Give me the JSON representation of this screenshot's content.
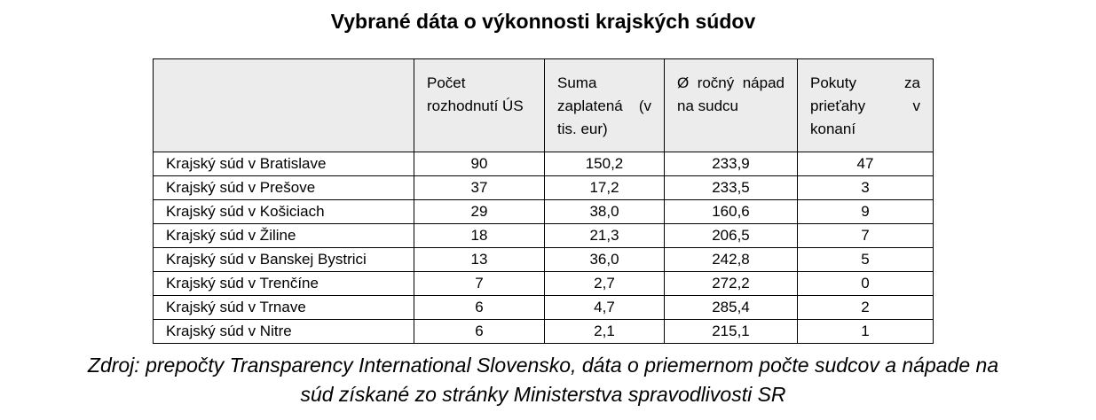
{
  "title": "Vybrané dáta o výkonnosti krajských súdov",
  "table": {
    "headers": [
      "",
      "Počet rozhodnutí ÚS",
      "Suma zaplatená (v tis. eur)",
      "Ø ročný nápad na sudcu",
      "Pokuty za prieťahy v konaní"
    ],
    "rows": [
      [
        "Krajský súd v Bratislave",
        "90",
        "150,2",
        "233,9",
        "47"
      ],
      [
        "Krajský súd v Prešove",
        "37",
        "17,2",
        "233,5",
        "3"
      ],
      [
        "Krajský súd v Košiciach",
        "29",
        "38,0",
        "160,6",
        "9"
      ],
      [
        "Krajský súd v Žiline",
        "18",
        "21,3",
        "206,5",
        "7"
      ],
      [
        "Krajský súd v Banskej Bystrici",
        "13",
        "36,0",
        "242,8",
        "5"
      ],
      [
        "Krajský súd v Trenčíne",
        "7",
        "2,7",
        "272,2",
        "0"
      ],
      [
        "Krajský súd v Trnave",
        "6",
        "4,7",
        "285,4",
        "2"
      ],
      [
        "Krajský súd v Nitre",
        "6",
        "2,1",
        "215,1",
        "1"
      ]
    ]
  },
  "source": {
    "line1": "Zdroj: prepočty Transparency International Slovensko, dáta o priemernom počte sudcov a nápade na",
    "line2": "súd získané zo stránky Ministerstva spravodlivosti SR"
  }
}
